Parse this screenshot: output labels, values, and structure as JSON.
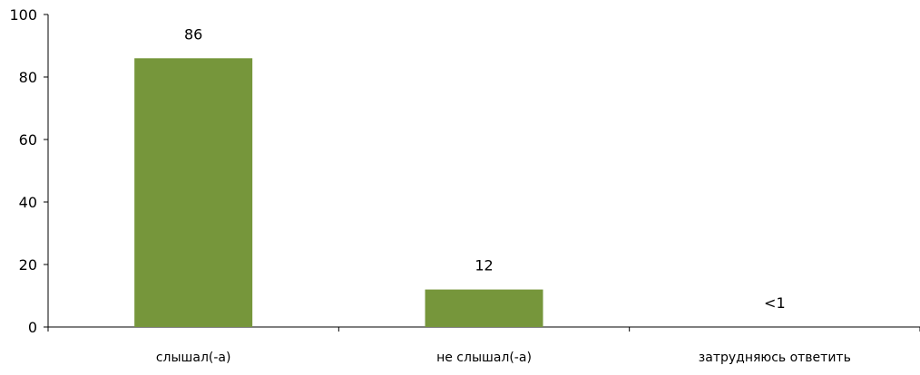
{
  "chart_data": {
    "type": "bar",
    "categories": [
      "слышал(-а)",
      "не слышал(-а)",
      "затрудняюсь ответить"
    ],
    "values": [
      86,
      12,
      0
    ],
    "data_labels": [
      "86",
      "12",
      "<1"
    ],
    "title": "",
    "xlabel": "",
    "ylabel": "",
    "ylim": [
      0,
      100
    ],
    "yticks": [
      0,
      20,
      40,
      60,
      80,
      100
    ],
    "ytick_labels": [
      "0",
      "20",
      "40",
      "60",
      "80",
      "100"
    ],
    "grid": false,
    "legend": "none",
    "bar_color": "#76963b",
    "axis_color": "#000000"
  }
}
